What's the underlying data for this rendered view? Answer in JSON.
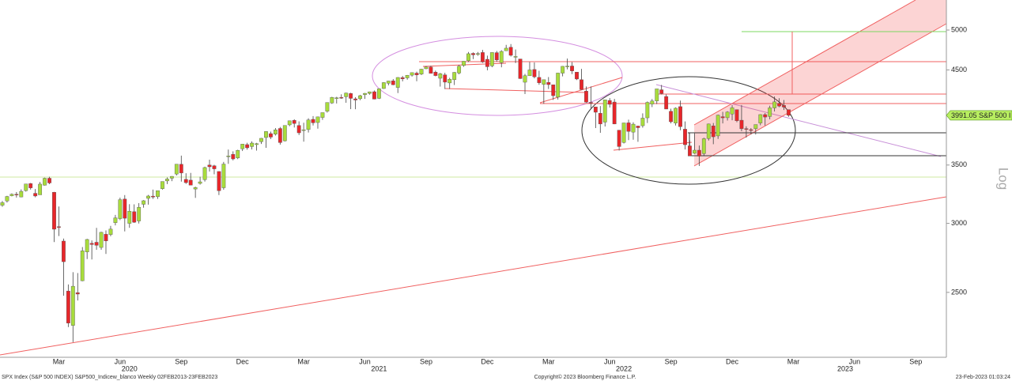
{
  "chart_data": {
    "type": "candlestick",
    "log": true,
    "ylim": [
      2106,
      5413
    ],
    "yticks": [
      2500,
      3000,
      3500,
      4500,
      5000
    ],
    "scale_label": "Log",
    "up_color": "#a8dc3c",
    "down_color": "#e8262a",
    "last_label": {
      "value": 3991.05,
      "label": "3991.05 S&P 500 I"
    },
    "footer_left": "SPX Index (S&P 500 INDEX) S&P500_Indicew_blanco  Weekly 02FEB2013-23FEB2023",
    "footer_center": "Copyright© 2023 Bloomberg Finance L.P.",
    "footer_right": "23-Feb-2023 01:03:24",
    "categories": [
      null,
      null,
      null,
      null,
      null,
      null,
      null,
      null,
      null,
      null,
      null,
      null,
      "Mar",
      null,
      null,
      null,
      null,
      null,
      null,
      null,
      null,
      null,
      null,
      null,
      null,
      "Jun",
      null,
      null,
      null,
      null,
      null,
      null,
      null,
      null,
      null,
      null,
      null,
      null,
      "Sep",
      null,
      null,
      null,
      null,
      null,
      null,
      null,
      null,
      null,
      null,
      null,
      null,
      "Dec",
      null,
      null,
      null,
      null,
      null,
      null,
      null,
      null,
      null,
      null,
      null,
      null,
      "Mar",
      null,
      null,
      null,
      null,
      null,
      null,
      null,
      null,
      null,
      null,
      null,
      null,
      "Jun",
      null,
      null,
      null,
      null,
      null,
      null,
      null,
      null,
      null,
      null,
      null,
      null,
      "Sep",
      null,
      null,
      null,
      null,
      null,
      null,
      null,
      null,
      null,
      null,
      null,
      null,
      "Dec",
      null,
      null,
      null,
      null,
      null,
      null,
      null,
      null,
      null,
      null,
      null,
      null,
      "Mar",
      null,
      null,
      null,
      null,
      null,
      null,
      null,
      null,
      null,
      null,
      null,
      null,
      "Jun",
      null,
      null,
      null,
      null,
      null,
      null,
      null,
      null,
      null,
      null,
      null,
      null,
      "Sep",
      null,
      null,
      null,
      null,
      null,
      null,
      null,
      null,
      null,
      null,
      null,
      null,
      "Dec",
      null,
      null,
      null,
      null,
      null,
      null,
      null,
      null,
      null,
      null,
      null,
      null,
      "Mar",
      null,
      null,
      null,
      null,
      null,
      null,
      null,
      null,
      null,
      null,
      null,
      null,
      "Jun",
      null,
      null,
      null,
      null,
      null,
      null,
      null,
      null,
      null,
      null,
      null,
      null,
      "Sep",
      null,
      null,
      null,
      null,
      null,
      null
    ],
    "year_labels": [
      null,
      null,
      null,
      null,
      null,
      null,
      null,
      null,
      null,
      null,
      null,
      null,
      null,
      null,
      null,
      null,
      null,
      null,
      null,
      null,
      null,
      null,
      null,
      null,
      null,
      null,
      null,
      "2020",
      null,
      null,
      null,
      null,
      null,
      null,
      null,
      null,
      null,
      null,
      null,
      null,
      null,
      null,
      null,
      null,
      null,
      null,
      null,
      null,
      null,
      null,
      null,
      null,
      null,
      null,
      null,
      null,
      null,
      null,
      null,
      null,
      null,
      null,
      null,
      null,
      null,
      null,
      null,
      null,
      null,
      null,
      null,
      null,
      null,
      null,
      null,
      null,
      null,
      null,
      null,
      null,
      "2021",
      null,
      null,
      null,
      null,
      null,
      null,
      null,
      null,
      null,
      null,
      null,
      null,
      null,
      null,
      null,
      null,
      null,
      null,
      null,
      null,
      null,
      null,
      null,
      null,
      null,
      null,
      null,
      null,
      null,
      null,
      null,
      null,
      null,
      null,
      null,
      null,
      null,
      null,
      null,
      null,
      null,
      null,
      null,
      null,
      null,
      null,
      null,
      null,
      null,
      null,
      null,
      "2022",
      null,
      null,
      null,
      null,
      null,
      null,
      null,
      null,
      null,
      null,
      null,
      null,
      null,
      null,
      null,
      null,
      null,
      null,
      null,
      null,
      null,
      null,
      null,
      null,
      null,
      null,
      null,
      null,
      null,
      null,
      null,
      null,
      null,
      null,
      null,
      null,
      null,
      null,
      null,
      null,
      null,
      null,
      null,
      null,
      null,
      null,
      "2023",
      null,
      null,
      null,
      null,
      null,
      null,
      null,
      null,
      null,
      null,
      null,
      null,
      null,
      null,
      null,
      null,
      null,
      null,
      null,
      null,
      null
    ],
    "open": [
      3147,
      3183,
      3227,
      3240,
      3217,
      3271,
      3333,
      3248,
      3235,
      3318,
      3380,
      3257,
      2974,
      2863,
      2509,
      2291,
      2498,
      2578,
      2782,
      2846,
      2854,
      2815,
      2915,
      2913,
      3005,
      3038,
      3199,
      3000,
      3094,
      3019,
      3155,
      3205,
      3224,
      3219,
      3288,
      3356,
      3380,
      3418,
      3507,
      3370,
      3363,
      3285,
      3334,
      3367,
      3500,
      3493,
      3441,
      3296,
      3583,
      3600,
      3566,
      3653,
      3694,
      3675,
      3694,
      3723,
      3764,
      3803,
      3797,
      3855,
      3731,
      3892,
      3939,
      3886,
      3842,
      3844,
      3949,
      3916,
      3969,
      4034,
      4124,
      4180,
      4185,
      4192,
      4228,
      4169,
      4170,
      4216,
      4229,
      4248,
      4174,
      4284,
      4344,
      4372,
      4296,
      4410,
      4406,
      4438,
      4462,
      4450,
      4514,
      4535,
      4474,
      4402,
      4442,
      4348,
      4385,
      4463,
      4553,
      4610,
      4701,
      4689,
      4712,
      4628,
      4548,
      4710,
      4587,
      4733,
      4778,
      4655,
      4632,
      4356,
      4431,
      4505,
      4412,
      4332,
      4354,
      4327,
      4188,
      4462,
      4541,
      4547,
      4474,
      4385,
      4255,
      4130,
      4081,
      4013,
      3920,
      4151,
      4134,
      3838,
      3715,
      3913,
      3818,
      3880,
      3883,
      3965,
      4112,
      4145,
      4270,
      4195,
      4034,
      3910,
      4084,
      3848,
      3682,
      3610,
      3640,
      3607,
      3754,
      3882,
      3780,
      3977,
      3966,
      4005,
      4052,
      3940,
      3853,
      3843,
      3853,
      3911,
      3999,
      3979,
      4070,
      4120,
      4097,
      4052,
      null,
      null,
      null,
      null,
      null,
      null,
      null,
      null,
      null,
      null,
      null,
      null,
      null,
      null,
      null,
      null,
      null,
      null,
      null,
      null,
      null,
      null,
      null,
      null,
      null,
      null,
      null,
      null,
      null,
      null,
      null,
      null,
      null
    ],
    "high": [
      3183,
      3226,
      3247,
      3259,
      3282,
      3329,
      3338,
      3285,
      3347,
      3385,
      3393,
      3260,
      3137,
      2882,
      2553,
      2637,
      2631,
      2818,
      2880,
      2868,
      2965,
      2934,
      2945,
      2980,
      3068,
      3211,
      3233,
      3156,
      3155,
      3165,
      3190,
      3234,
      3280,
      3272,
      3352,
      3387,
      3399,
      3509,
      3588,
      3425,
      3428,
      3306,
      3393,
      3485,
      3550,
      3502,
      3441,
      3529,
      3646,
      3629,
      3644,
      3699,
      3712,
      3726,
      3711,
      3760,
      3827,
      3823,
      3859,
      3870,
      3887,
      3934,
      3950,
      3928,
      3914,
      3960,
      3983,
      3978,
      4020,
      4130,
      4191,
      4191,
      4219,
      4238,
      4236,
      4187,
      4213,
      4234,
      4249,
      4262,
      4286,
      4356,
      4372,
      4393,
      4415,
      4429,
      4440,
      4468,
      4480,
      4513,
      4545,
      4549,
      4492,
      4465,
      4466,
      4407,
      4475,
      4560,
      4608,
      4718,
      4714,
      4718,
      4744,
      4673,
      4713,
      4731,
      4740,
      4808,
      4818,
      4749,
      4632,
      4453,
      4595,
      4590,
      4490,
      4385,
      4416,
      4327,
      4465,
      4546,
      4637,
      4593,
      4475,
      4513,
      4308,
      4308,
      4081,
      4090,
      4158,
      4177,
      4168,
      3838,
      3913,
      3946,
      3918,
      3880,
      4012,
      4140,
      4167,
      4280,
      4325,
      4218,
      4062,
      4076,
      4150,
      3927,
      3736,
      3806,
      3685,
      3762,
      3905,
      3911,
      3999,
      4028,
      4034,
      4100,
      4052,
      4101,
      3877,
      3859,
      3895,
      4003,
      4015,
      4094,
      4195,
      4176,
      4156,
      4052,
      null,
      null,
      null,
      null,
      null,
      null,
      null,
      null,
      null,
      null,
      null,
      null,
      null,
      null,
      null,
      null,
      null,
      null,
      null,
      null,
      null,
      null,
      null,
      null,
      null,
      null,
      null,
      null,
      null,
      null,
      null,
      null,
      null
    ],
    "low": [
      3134,
      3170,
      3222,
      3212,
      3214,
      3263,
      3280,
      3214,
      3235,
      3315,
      3327,
      2855,
      2901,
      2478,
      2281,
      2192,
      2447,
      2575,
      2730,
      2727,
      2798,
      2798,
      2767,
      2900,
      2984,
      3026,
      2937,
      2965,
      3004,
      2999,
      3127,
      3152,
      3200,
      3200,
      3280,
      3328,
      3354,
      3405,
      3350,
      3330,
      3320,
      3209,
      3324,
      3350,
      3440,
      3415,
      3233,
      3279,
      3511,
      3543,
      3555,
      3632,
      3645,
      3647,
      3636,
      3700,
      3663,
      3749,
      3784,
      3694,
      3725,
      3878,
      3865,
      3789,
      3723,
      3814,
      3886,
      3853,
      3944,
      4020,
      4114,
      4118,
      4169,
      4126,
      4057,
      4056,
      4154,
      4168,
      4215,
      4164,
      4167,
      4280,
      4320,
      4322,
      4233,
      4366,
      4385,
      4422,
      4368,
      4439,
      4509,
      4457,
      4425,
      4306,
      4278,
      4279,
      4324,
      4448,
      4537,
      4595,
      4630,
      4672,
      4585,
      4495,
      4532,
      4600,
      4531,
      4733,
      4662,
      4582,
      4395,
      4222,
      4431,
      4401,
      4327,
      4115,
      4279,
      4157,
      4161,
      4424,
      4507,
      4450,
      4381,
      4270,
      4124,
      4063,
      3859,
      3811,
      3875,
      4074,
      3899,
      3637,
      3705,
      3738,
      3742,
      3722,
      3863,
      3911,
      4079,
      4112,
      4218,
      4057,
      3907,
      3886,
      3837,
      3647,
      3584,
      3604,
      3491,
      3591,
      3734,
      3698,
      3750,
      3907,
      3937,
      3940,
      3919,
      3827,
      3764,
      3795,
      3794,
      3888,
      3885,
      3949,
      4032,
      4078,
      4048,
      3976,
      null,
      null,
      null,
      null,
      null,
      null,
      null,
      null,
      null,
      null,
      null,
      null,
      null,
      null,
      null,
      null,
      null,
      null,
      null,
      null,
      null,
      null,
      null,
      null,
      null,
      null,
      null,
      null,
      null,
      null,
      null,
      null,
      null
    ],
    "close": [
      3169,
      3221,
      3240,
      3235,
      3265,
      3329,
      3295,
      3225,
      3328,
      3380,
      3338,
      2954,
      2972,
      2711,
      2305,
      2541,
      2489,
      2790,
      2875,
      2837,
      2831,
      2930,
      2864,
      2955,
      3044,
      3194,
      3041,
      3098,
      3009,
      3130,
      3185,
      3225,
      3216,
      3271,
      3351,
      3373,
      3397,
      3508,
      3427,
      3341,
      3319,
      3298,
      3348,
      3477,
      3484,
      3465,
      3270,
      3509,
      3585,
      3557,
      3638,
      3699,
      3663,
      3709,
      3703,
      3756,
      3824,
      3768,
      3841,
      3714,
      3886,
      3934,
      3906,
      3811,
      3842,
      3943,
      3913,
      3975,
      4020,
      4129,
      4185,
      4180,
      4181,
      4233,
      4174,
      4156,
      4204,
      4230,
      4247,
      4166,
      4281,
      4352,
      4370,
      4327,
      4411,
      4395,
      4437,
      4468,
      4441,
      4509,
      4535,
      4459,
      4433,
      4455,
      4357,
      4391,
      4471,
      4545,
      4605,
      4697,
      4683,
      4698,
      4595,
      4538,
      4712,
      4620,
      4726,
      4766,
      4677,
      4663,
      4398,
      4432,
      4500,
      4419,
      4349,
      4385,
      4329,
      4204,
      4463,
      4543,
      4546,
      4488,
      4393,
      4272,
      4132,
      4123,
      4024,
      3901,
      4158,
      4109,
      3901,
      3675,
      3912,
      3825,
      3899,
      3863,
      3962,
      4130,
      4145,
      4280,
      4228,
      4058,
      3924,
      4067,
      3873,
      3693,
      3586,
      3640,
      3583,
      3752,
      3901,
      3771,
      3993,
      3965,
      4026,
      4072,
      3934,
      3852,
      3845,
      3839,
      3895,
      3999,
      3973,
      4071,
      4136,
      4090,
      4079,
      3991.05,
      null,
      null,
      null,
      null,
      null,
      null,
      null,
      null,
      null,
      null,
      null,
      null,
      null,
      null,
      null,
      null,
      null,
      null,
      null,
      null,
      null,
      null,
      null,
      null,
      null,
      null,
      null,
      null,
      null,
      null,
      null,
      null,
      null
    ]
  }
}
